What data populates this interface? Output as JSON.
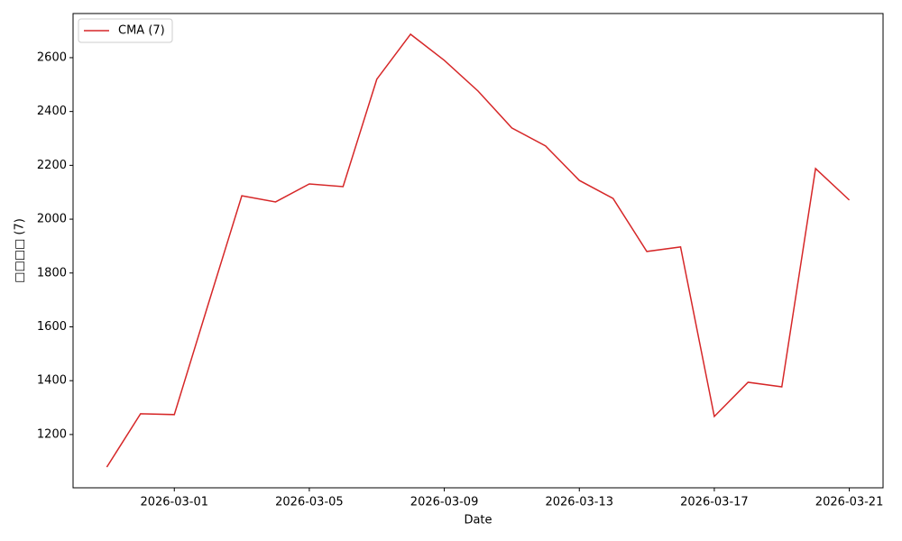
{
  "chart_data": {
    "type": "line",
    "x_label": "Date",
    "y_label": "□□□□ (7)",
    "x": [
      "2026-02-27",
      "2026-02-28",
      "2026-03-01",
      "2026-03-02",
      "2026-03-03",
      "2026-03-04",
      "2026-03-05",
      "2026-03-06",
      "2026-03-07",
      "2026-03-08",
      "2026-03-09",
      "2026-03-10",
      "2026-03-11",
      "2026-03-12",
      "2026-03-13",
      "2026-03-14",
      "2026-03-15",
      "2026-03-16",
      "2026-03-17",
      "2026-03-18",
      "2026-03-19",
      "2026-03-20",
      "2026-03-21"
    ],
    "series": [
      {
        "name": "CMA (7)",
        "color": "#d62728",
        "values": [
          1079,
          1277,
          1274,
          1682,
          2087,
          2064,
          2131,
          2121,
          2520,
          2687,
          2590,
          2476,
          2339,
          2272,
          2144,
          2077,
          1880,
          1897,
          1267,
          1394,
          1377,
          2188,
          2071
        ]
      }
    ],
    "xlim": [
      "2026-02-26",
      "2026-03-22"
    ],
    "xticks": [
      "2026-03-01",
      "2026-03-05",
      "2026-03-09",
      "2026-03-13",
      "2026-03-17",
      "2026-03-21"
    ],
    "ylim": [
      1002,
      2764
    ],
    "yticks": [
      1200,
      1400,
      1600,
      1800,
      2000,
      2200,
      2400,
      2600
    ],
    "legend": "upper-left"
  }
}
